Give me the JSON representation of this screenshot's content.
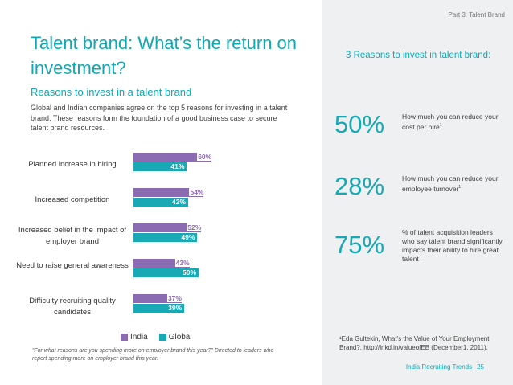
{
  "header": {
    "title": "Talent brand: What’s the return on investment?",
    "subtitle": "Reasons to invest in a talent brand",
    "body": "Global and Indian companies agree on the top 5 reasons for investing in a talent brand. These reasons form the foundation of a good business case to secure talent brand resources."
  },
  "chart_data": {
    "type": "bar",
    "orientation": "horizontal",
    "categories": [
      "Planned increase in hiring",
      "Increased competition",
      "Increased belief in the impact of employer brand",
      "Need to raise general awareness",
      "Difficulty recruiting quality candidates"
    ],
    "series": [
      {
        "name": "India",
        "values": [
          60,
          54,
          52,
          43,
          37
        ],
        "labels": [
          "60%",
          "54%",
          "52%",
          "43%",
          "37%"
        ],
        "color": "#8b6bb1"
      },
      {
        "name": "Global",
        "values": [
          41,
          42,
          49,
          50,
          39
        ],
        "labels": [
          "41%",
          "42%",
          "49%",
          "50%",
          "39%"
        ],
        "color": "#19a9b5"
      }
    ],
    "xlim": [
      0,
      100
    ],
    "legend": [
      "India",
      "Global"
    ]
  },
  "footnote": "“For what reasons are you spending more on employer brand this year?” Directed to leaders who report spending more on employer brand this year.",
  "sidebar": {
    "part": "Part 3: Talent Brand",
    "heading": "3 Reasons to invest in talent brand:",
    "stats": [
      {
        "pct": "50%",
        "desc": "How much you can reduce your cost per hire",
        "sup": "1"
      },
      {
        "pct": "28%",
        "desc": "How much you can reduce your employee turnover",
        "sup": "1"
      },
      {
        "pct": "75%",
        "desc": "% of talent acquisition leaders who say talent brand significantly impacts their ability to hire great talent",
        "sup": ""
      }
    ],
    "source": "¹Eda Gultekin, What’s the Value of Your Employment Brand?, http://lnkd.in/valueofEB (December1, 2011).",
    "footer_label": "India Recruiting Trends",
    "page_number": "25"
  }
}
